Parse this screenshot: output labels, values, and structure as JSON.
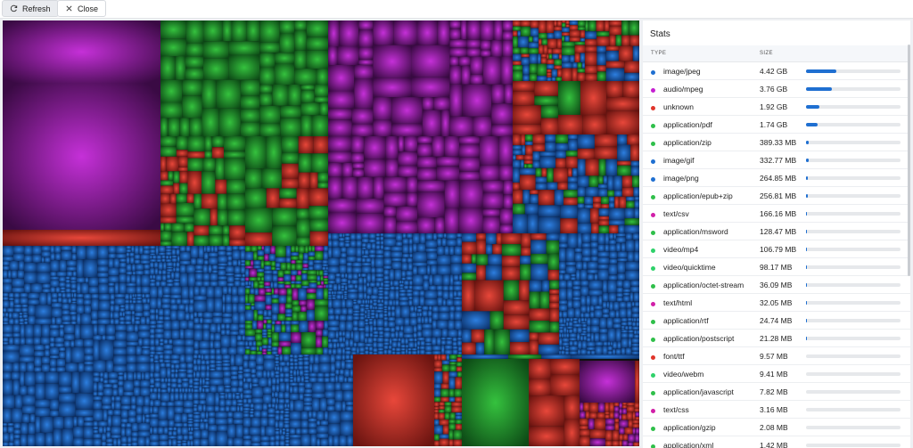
{
  "toolbar": {
    "refresh": "Refresh",
    "close": "Close"
  },
  "stats": {
    "title": "Stats",
    "columns": [
      "TYPE",
      "SIZE"
    ],
    "rows": [
      {
        "type": "image/jpeg",
        "size": "4.42 GB",
        "color": "#1f6fd1"
      },
      {
        "type": "audio/mpeg",
        "size": "3.76 GB",
        "color": "#c51fd1"
      },
      {
        "type": "unknown",
        "size": "1.92 GB",
        "color": "#e0352b"
      },
      {
        "type": "application/pdf",
        "size": "1.74 GB",
        "color": "#2fbf4a"
      },
      {
        "type": "application/zip",
        "size": "389.33 MB",
        "color": "#2fbf4a"
      },
      {
        "type": "image/gif",
        "size": "332.77 MB",
        "color": "#1f6fd1"
      },
      {
        "type": "image/png",
        "size": "264.85 MB",
        "color": "#1f6fd1"
      },
      {
        "type": "application/epub+zip",
        "size": "256.81 MB",
        "color": "#2fbf4a"
      },
      {
        "type": "text/csv",
        "size": "166.16 MB",
        "color": "#d11fa8"
      },
      {
        "type": "application/msword",
        "size": "128.47 MB",
        "color": "#2fbf4a"
      },
      {
        "type": "video/mp4",
        "size": "106.79 MB",
        "color": "#2fd16a"
      },
      {
        "type": "video/quicktime",
        "size": "98.17 MB",
        "color": "#2fd16a"
      },
      {
        "type": "application/octet-stream",
        "size": "36.09 MB",
        "color": "#2fbf4a"
      },
      {
        "type": "text/html",
        "size": "32.05 MB",
        "color": "#d11fa8"
      },
      {
        "type": "application/rtf",
        "size": "24.74 MB",
        "color": "#2fbf4a"
      },
      {
        "type": "application/postscript",
        "size": "21.28 MB",
        "color": "#2fbf4a"
      },
      {
        "type": "font/ttf",
        "size": "9.57 MB",
        "color": "#e0352b"
      },
      {
        "type": "video/webm",
        "size": "9.41 MB",
        "color": "#2fd16a"
      },
      {
        "type": "application/javascript",
        "size": "7.82 MB",
        "color": "#2fbf4a"
      },
      {
        "type": "text/css",
        "size": "3.16 MB",
        "color": "#d11fa8"
      },
      {
        "type": "application/gzip",
        "size": "2.08 MB",
        "color": "#2fbf4a"
      },
      {
        "type": "application/xml",
        "size": "1.42 MB",
        "color": "#2fbf4a"
      }
    ]
  }
}
